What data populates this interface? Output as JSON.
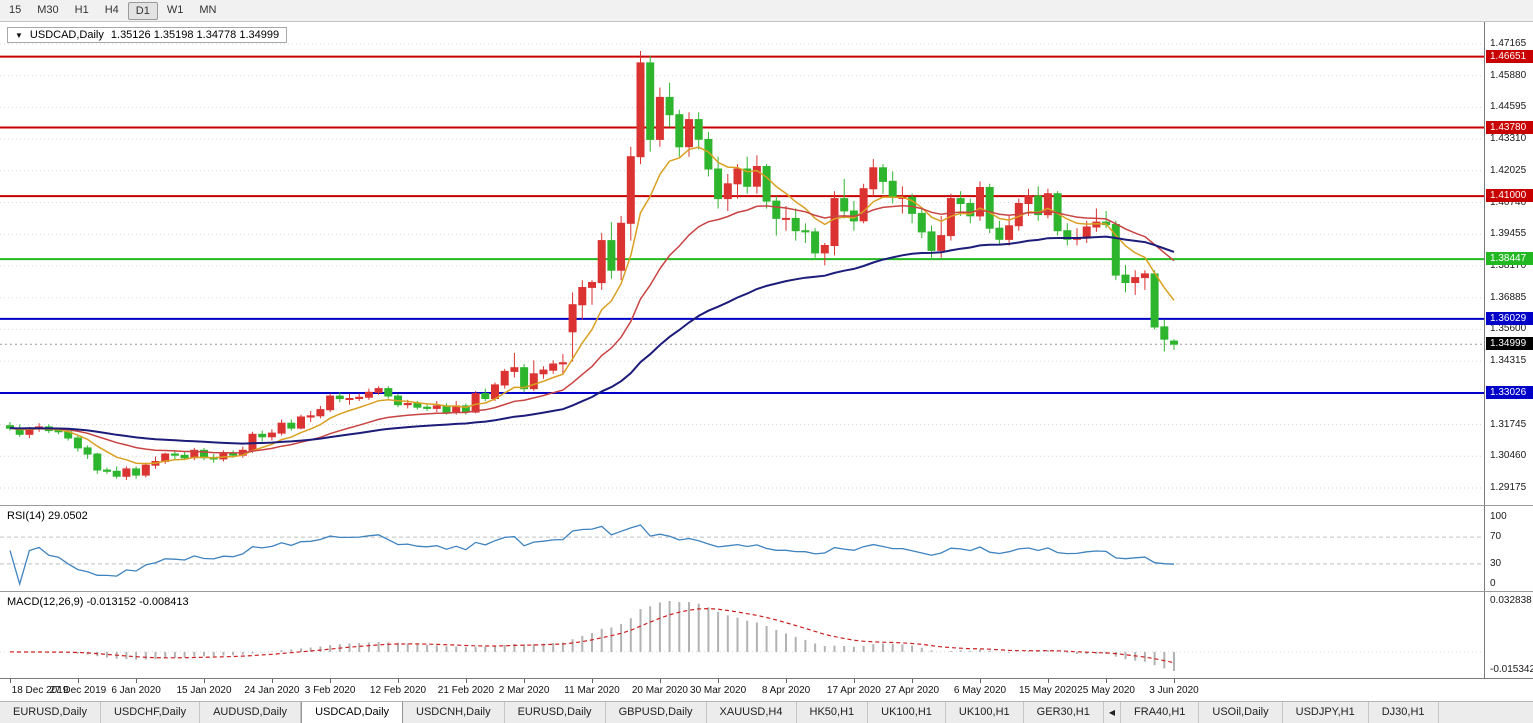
{
  "toolbar": {
    "periods": [
      "15",
      "M30",
      "H1",
      "H4",
      "D1",
      "W1",
      "MN"
    ],
    "active": "D1"
  },
  "chart": {
    "title": {
      "dropdown_icon": "▼",
      "symbol": "USDCAD,Daily",
      "ohlc": "1.35126 1.35198 1.34778 1.34999"
    },
    "rsi_title": "RSI(14) 29.0502",
    "macd_title": "MACD(12,26,9) -0.013152 -0.008413"
  },
  "chart_data": {
    "type": "candlestick",
    "symbol": "USDCAD",
    "timeframe": "Daily",
    "ohlc_display": {
      "open": "1.35126",
      "high": "1.35198",
      "low": "1.34778",
      "close": "1.34999"
    },
    "colors": {
      "bull": "#db3232",
      "bear": "#2eb52e",
      "grid": "#d6d6d6",
      "rsi": "#3f83bf",
      "rsi_level": "#c0c0c0",
      "macd_hist": "#b2b2b2",
      "macd_signal": "#cc2020",
      "current_line": "#999999"
    },
    "price_axis": {
      "labels": [
        "1.47165",
        "1.45880",
        "1.44595",
        "1.43310",
        "1.42025",
        "1.40740",
        "1.39455",
        "1.38170",
        "1.36885",
        "1.35600",
        "1.34315",
        "1.33030",
        "1.31745",
        "1.30460",
        "1.29175"
      ]
    },
    "hlines": [
      {
        "price": 1.46651,
        "label": "1.46651",
        "color": "#c80000"
      },
      {
        "price": 1.4378,
        "label": "1.43780",
        "color": "#c80000"
      },
      {
        "price": 1.41,
        "label": "1.41000",
        "color": "#c80000"
      },
      {
        "price": 1.38447,
        "label": "1.38447",
        "color": "#22b822"
      },
      {
        "price": 1.36029,
        "label": "1.36029",
        "color": "#0000c8"
      },
      {
        "price": 1.33026,
        "label": "1.33026",
        "color": "#0000c8"
      }
    ],
    "current_price": {
      "value": 1.34999,
      "label": "1.34999",
      "color": "#000000"
    },
    "moving_averages": [
      {
        "period": 8,
        "color": "#d9a021"
      },
      {
        "period": 22,
        "color": "#c94343"
      },
      {
        "period": 55,
        "color": "#1c1c7a"
      }
    ],
    "rsi": {
      "name": "RSI",
      "period": 14,
      "value": "29.0502",
      "levels": [
        100,
        70,
        30,
        0
      ]
    },
    "macd": {
      "name": "MACD",
      "fast": 12,
      "slow": 26,
      "signal_period": 9,
      "values": [
        "-0.013152",
        "-0.008413"
      ],
      "axis_labels": [
        "0.032838",
        "-0.015342"
      ]
    },
    "time_ticks": [
      {
        "i": 0,
        "label": "18 Dec 2019"
      },
      {
        "i": 7,
        "label": "27 Dec 2019"
      },
      {
        "i": 13,
        "label": "6 Jan 2020"
      },
      {
        "i": 20,
        "label": "15 Jan 2020"
      },
      {
        "i": 27,
        "label": "24 Jan 2020"
      },
      {
        "i": 33,
        "label": "3 Feb 2020"
      },
      {
        "i": 40,
        "label": "12 Feb 2020"
      },
      {
        "i": 47,
        "label": "21 Feb 2020"
      },
      {
        "i": 53,
        "label": "2 Mar 2020"
      },
      {
        "i": 60,
        "label": "11 Mar 2020"
      },
      {
        "i": 67,
        "label": "20 Mar 2020"
      },
      {
        "i": 73,
        "label": "30 Mar 2020"
      },
      {
        "i": 80,
        "label": "8 Apr 2020"
      },
      {
        "i": 87,
        "label": "17 Apr 2020"
      },
      {
        "i": 93,
        "label": "27 Apr 2020"
      },
      {
        "i": 100,
        "label": "6 May 2020"
      },
      {
        "i": 107,
        "label": "15 May 2020"
      },
      {
        "i": 113,
        "label": "25 May 2020"
      },
      {
        "i": 120,
        "label": "3 Jun 2020"
      }
    ],
    "candles": [
      [
        1.317,
        1.3185,
        1.315,
        1.316
      ],
      [
        1.316,
        1.3175,
        1.3125,
        1.3135
      ],
      [
        1.3135,
        1.3165,
        1.312,
        1.316
      ],
      [
        1.316,
        1.318,
        1.3145,
        1.3165
      ],
      [
        1.3165,
        1.3175,
        1.314,
        1.315
      ],
      [
        1.315,
        1.316,
        1.3135,
        1.3145
      ],
      [
        1.3145,
        1.3155,
        1.311,
        1.312
      ],
      [
        1.312,
        1.313,
        1.3065,
        1.308
      ],
      [
        1.308,
        1.309,
        1.3035,
        1.3055
      ],
      [
        1.3055,
        1.306,
        1.2975,
        1.299
      ],
      [
        1.299,
        1.3,
        1.2975,
        1.2985
      ],
      [
        1.2985,
        1.3005,
        1.2955,
        1.2965
      ],
      [
        1.2965,
        1.3005,
        1.295,
        1.2995
      ],
      [
        1.2995,
        1.3005,
        1.2955,
        1.297
      ],
      [
        1.297,
        1.302,
        1.296,
        1.301
      ],
      [
        1.301,
        1.3045,
        1.2995,
        1.3025
      ],
      [
        1.3025,
        1.306,
        1.3015,
        1.3055
      ],
      [
        1.3055,
        1.307,
        1.303,
        1.305
      ],
      [
        1.305,
        1.3065,
        1.303,
        1.304
      ],
      [
        1.304,
        1.308,
        1.303,
        1.307
      ],
      [
        1.307,
        1.308,
        1.303,
        1.304
      ],
      [
        1.304,
        1.3055,
        1.302,
        1.3035
      ],
      [
        1.3035,
        1.307,
        1.3025,
        1.3055
      ],
      [
        1.3055,
        1.307,
        1.304,
        1.305
      ],
      [
        1.305,
        1.3085,
        1.304,
        1.307
      ],
      [
        1.307,
        1.3145,
        1.306,
        1.3135
      ],
      [
        1.3135,
        1.315,
        1.3105,
        1.3125
      ],
      [
        1.3125,
        1.3155,
        1.311,
        1.314
      ],
      [
        1.314,
        1.3195,
        1.313,
        1.318
      ],
      [
        1.318,
        1.3195,
        1.315,
        1.316
      ],
      [
        1.316,
        1.3215,
        1.3155,
        1.3205
      ],
      [
        1.3205,
        1.323,
        1.3185,
        1.321
      ],
      [
        1.321,
        1.325,
        1.32,
        1.3235
      ],
      [
        1.3235,
        1.33,
        1.3225,
        1.329
      ],
      [
        1.329,
        1.3305,
        1.3265,
        1.328
      ],
      [
        1.328,
        1.33,
        1.3255,
        1.328
      ],
      [
        1.328,
        1.33,
        1.327,
        1.3285
      ],
      [
        1.3285,
        1.332,
        1.3275,
        1.3305
      ],
      [
        1.3305,
        1.333,
        1.3295,
        1.332
      ],
      [
        1.332,
        1.333,
        1.328,
        1.329
      ],
      [
        1.329,
        1.33,
        1.3245,
        1.3255
      ],
      [
        1.3255,
        1.3275,
        1.324,
        1.326
      ],
      [
        1.326,
        1.327,
        1.3235,
        1.3245
      ],
      [
        1.3245,
        1.3255,
        1.323,
        1.324
      ],
      [
        1.324,
        1.327,
        1.3225,
        1.325
      ],
      [
        1.325,
        1.326,
        1.3215,
        1.3225
      ],
      [
        1.3225,
        1.327,
        1.3215,
        1.325
      ],
      [
        1.325,
        1.326,
        1.3215,
        1.3225
      ],
      [
        1.3225,
        1.331,
        1.322,
        1.33
      ],
      [
        1.33,
        1.332,
        1.327,
        1.328
      ],
      [
        1.328,
        1.3345,
        1.327,
        1.3335
      ],
      [
        1.3335,
        1.34,
        1.332,
        1.339
      ],
      [
        1.339,
        1.3465,
        1.3365,
        1.3405
      ],
      [
        1.3405,
        1.342,
        1.3305,
        1.332
      ],
      [
        1.332,
        1.3435,
        1.331,
        1.338
      ],
      [
        1.338,
        1.341,
        1.336,
        1.3395
      ],
      [
        1.3395,
        1.3435,
        1.338,
        1.342
      ],
      [
        1.342,
        1.346,
        1.338,
        1.3425
      ],
      [
        1.355,
        1.371,
        1.343,
        1.366
      ],
      [
        1.366,
        1.376,
        1.36,
        1.373
      ],
      [
        1.373,
        1.376,
        1.366,
        1.375
      ],
      [
        1.375,
        1.395,
        1.372,
        1.392
      ],
      [
        1.392,
        1.3995,
        1.3765,
        1.38
      ],
      [
        1.38,
        1.402,
        1.376,
        1.399
      ],
      [
        1.399,
        1.43,
        1.392,
        1.426
      ],
      [
        1.426,
        1.4688,
        1.423,
        1.464
      ],
      [
        1.464,
        1.4668,
        1.428,
        1.433
      ],
      [
        1.433,
        1.454,
        1.43,
        1.45
      ],
      [
        1.45,
        1.456,
        1.438,
        1.443
      ],
      [
        1.443,
        1.445,
        1.426,
        1.43
      ],
      [
        1.43,
        1.444,
        1.426,
        1.441
      ],
      [
        1.441,
        1.444,
        1.429,
        1.433
      ],
      [
        1.433,
        1.436,
        1.418,
        1.421
      ],
      [
        1.421,
        1.426,
        1.405,
        1.409
      ],
      [
        1.409,
        1.419,
        1.404,
        1.415
      ],
      [
        1.415,
        1.423,
        1.409,
        1.421
      ],
      [
        1.421,
        1.426,
        1.411,
        1.414
      ],
      [
        1.414,
        1.4265,
        1.411,
        1.422
      ],
      [
        1.422,
        1.423,
        1.405,
        1.408
      ],
      [
        1.408,
        1.41,
        1.394,
        1.401
      ],
      [
        1.401,
        1.406,
        1.396,
        1.401
      ],
      [
        1.401,
        1.405,
        1.392,
        1.396
      ],
      [
        1.396,
        1.399,
        1.391,
        1.3955
      ],
      [
        1.3955,
        1.397,
        1.385,
        1.387
      ],
      [
        1.387,
        1.391,
        1.382,
        1.39
      ],
      [
        1.39,
        1.412,
        1.386,
        1.409
      ],
      [
        1.409,
        1.417,
        1.401,
        1.404
      ],
      [
        1.404,
        1.408,
        1.396,
        1.4
      ],
      [
        1.4,
        1.415,
        1.399,
        1.413
      ],
      [
        1.413,
        1.425,
        1.41,
        1.4215
      ],
      [
        1.4215,
        1.423,
        1.411,
        1.416
      ],
      [
        1.416,
        1.42,
        1.407,
        1.4095
      ],
      [
        1.4095,
        1.414,
        1.403,
        1.4095
      ],
      [
        1.4095,
        1.411,
        1.399,
        1.403
      ],
      [
        1.403,
        1.405,
        1.393,
        1.3955
      ],
      [
        1.3955,
        1.398,
        1.385,
        1.388
      ],
      [
        1.388,
        1.402,
        1.385,
        1.394
      ],
      [
        1.394,
        1.411,
        1.392,
        1.409
      ],
      [
        1.409,
        1.412,
        1.402,
        1.407
      ],
      [
        1.407,
        1.409,
        1.399,
        1.402
      ],
      [
        1.402,
        1.416,
        1.4,
        1.4135
      ],
      [
        1.4135,
        1.415,
        1.395,
        1.397
      ],
      [
        1.397,
        1.4,
        1.39,
        1.3925
      ],
      [
        1.3925,
        1.402,
        1.39,
        1.398
      ],
      [
        1.398,
        1.409,
        1.396,
        1.407
      ],
      [
        1.407,
        1.413,
        1.402,
        1.41
      ],
      [
        1.41,
        1.414,
        1.4,
        1.4025
      ],
      [
        1.4025,
        1.413,
        1.401,
        1.411
      ],
      [
        1.411,
        1.412,
        1.394,
        1.396
      ],
      [
        1.396,
        1.399,
        1.39,
        1.3925
      ],
      [
        1.3925,
        1.397,
        1.39,
        1.393
      ],
      [
        1.393,
        1.4,
        1.391,
        1.3975
      ],
      [
        1.3975,
        1.405,
        1.3955,
        1.3995
      ],
      [
        1.3995,
        1.404,
        1.397,
        1.3985
      ],
      [
        1.3985,
        1.4,
        1.376,
        1.378
      ],
      [
        1.378,
        1.382,
        1.371,
        1.375
      ],
      [
        1.375,
        1.38,
        1.37,
        1.377
      ],
      [
        1.377,
        1.38,
        1.372,
        1.3785
      ],
      [
        1.3785,
        1.38,
        1.356,
        1.357
      ],
      [
        1.357,
        1.36,
        1.347,
        1.352
      ],
      [
        1.35126,
        1.35198,
        1.34778,
        1.34999
      ]
    ]
  },
  "tabs": [
    {
      "label": "EURUSD,Daily"
    },
    {
      "label": "USDCHF,Daily"
    },
    {
      "label": "AUDUSD,Daily"
    },
    {
      "label": "USDCAD,Daily",
      "active": true
    },
    {
      "label": "USDCNH,Daily"
    },
    {
      "label": "EURUSD,Daily"
    },
    {
      "label": "GBPUSD,Daily"
    },
    {
      "label": "XAUUSD,H4"
    },
    {
      "label": "HK50,H1"
    },
    {
      "label": "UK100,H1"
    },
    {
      "label": "UK100,H1"
    },
    {
      "label": "GER30,H1"
    },
    {
      "icon": "tab-scroll-left"
    },
    {
      "label": "FRA40,H1"
    },
    {
      "label": "USOil,Daily"
    },
    {
      "label": "USDJPY,H1"
    },
    {
      "label": "DJ30,H1"
    }
  ]
}
